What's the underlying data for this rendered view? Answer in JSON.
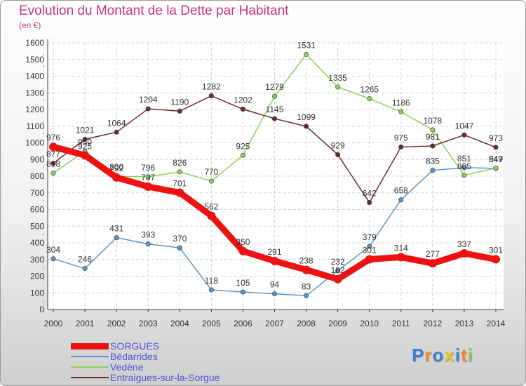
{
  "header": {
    "title": "Evolution du Montant de la Dette par Habitant",
    "unit": "(en €)"
  },
  "logo": {
    "text": "Proxiti"
  },
  "chart_data": {
    "type": "line",
    "title": "Evolution du Montant de la Dette par Habitant",
    "ylabel": "(en €)",
    "xlabel": "",
    "x": [
      "2000",
      "2001",
      "2002",
      "2003",
      "2004",
      "2005",
      "2006",
      "2007",
      "2008",
      "2009",
      "2010",
      "2011",
      "2012",
      "2013",
      "2014"
    ],
    "ylim": [
      0,
      1600
    ],
    "yticks": [
      0,
      100,
      200,
      300,
      400,
      500,
      600,
      700,
      800,
      900,
      1000,
      1100,
      1200,
      1300,
      1400,
      1500,
      1600
    ],
    "grid": true,
    "legend_position": "bottom-left",
    "series": [
      {
        "name": "SORGUES",
        "color": "#ee1111",
        "values": [
          976,
          925,
          792,
          737,
          701,
          562,
          350,
          291,
          238,
          182,
          301,
          314,
          277,
          337,
          301
        ]
      },
      {
        "name": "Bédarrides",
        "color": "#5a96c8",
        "values": [
          304,
          246,
          431,
          393,
          370,
          118,
          105,
          94,
          83,
          232,
          379,
          658,
          835,
          851,
          847
        ]
      },
      {
        "name": "Vedène",
        "color": "#8ad35a",
        "values": [
          818,
          950,
          800,
          796,
          826,
          770,
          925,
          1279,
          1531,
          1335,
          1265,
          1186,
          1078,
          805,
          849
        ]
      },
      {
        "name": "Entraigues-sur-la-Sorgue",
        "color": "#6e2a2a",
        "values": [
          877,
          1021,
          1064,
          1204,
          1190,
          1282,
          1202,
          1145,
          1099,
          929,
          642,
          975,
          981,
          1047,
          973
        ]
      }
    ]
  }
}
